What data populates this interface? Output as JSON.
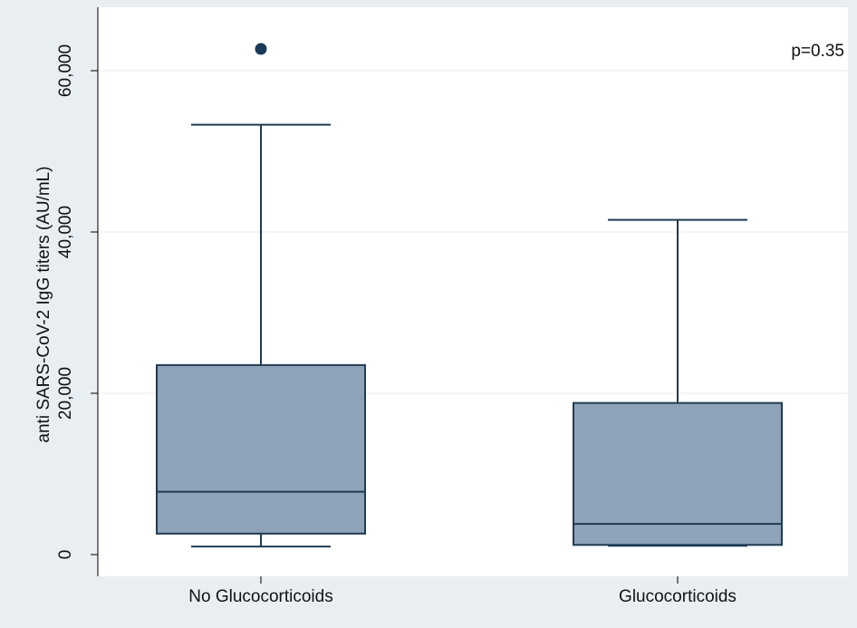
{
  "colors": {
    "figure_background": "#e9eef2",
    "plot_background": "#ffffff",
    "box_fill": "#8ea2b8",
    "box_stroke": "#1f3b52",
    "outlier": "#1a3a5a",
    "gridline": "#e6ebef"
  },
  "chart_data": {
    "type": "box",
    "categories": [
      "No Glucocorticoids",
      "Glucocorticoids"
    ],
    "ylabel": "anti SARS-CoV-2 IgG titers (AU/mL)",
    "yticks": [
      0,
      20000,
      40000,
      60000
    ],
    "ytick_labels": [
      "0",
      "20,000",
      "40,000",
      "60,000"
    ],
    "ylim": [
      -2800,
      64700
    ],
    "grid": true,
    "annotation": "p=0.35",
    "boxes": [
      {
        "category": "No Glucocorticoids",
        "whisker_low": 1000,
        "q1": 2600,
        "median": 7800,
        "q3": 23500,
        "whisker_high": 53300,
        "outliers": [
          62700
        ]
      },
      {
        "category": "Glucocorticoids",
        "whisker_low": 1100,
        "q1": 1200,
        "median": 3800,
        "q3": 18800,
        "whisker_high": 41500,
        "outliers": []
      }
    ]
  }
}
